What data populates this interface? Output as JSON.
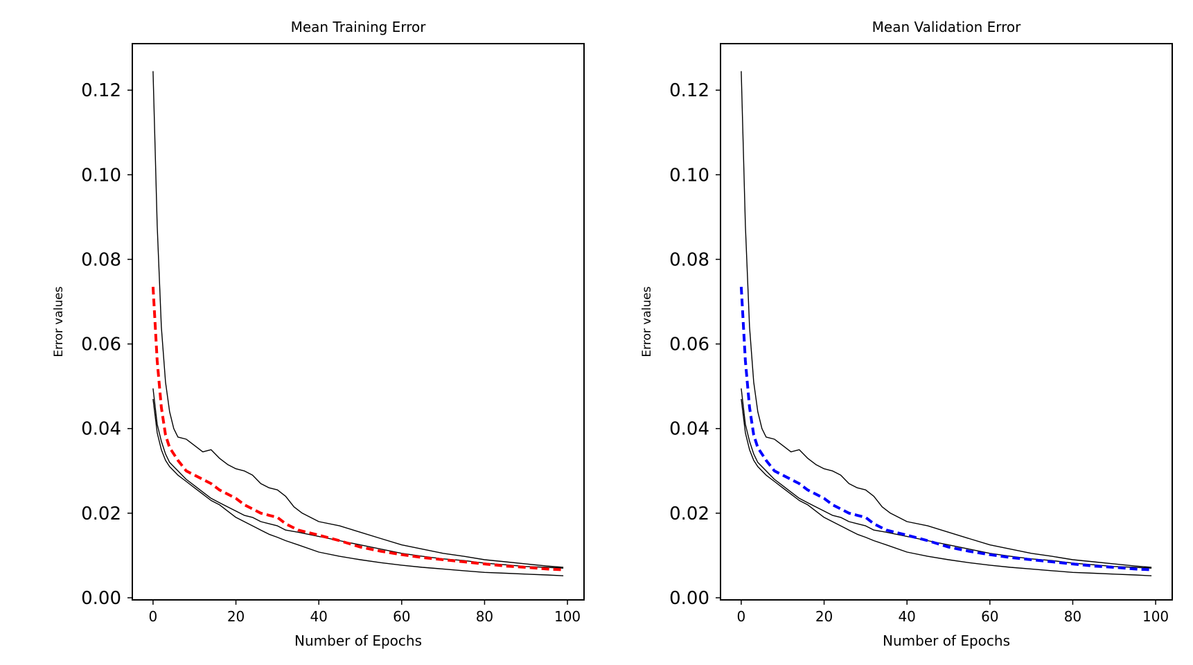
{
  "chart_data": [
    {
      "type": "line",
      "title": "Mean Training Error",
      "xlabel": "Number of Epochs",
      "ylabel": "Error values",
      "xlim": [
        -5,
        104
      ],
      "ylim": [
        -0.0005,
        0.131
      ],
      "xticks": [
        "0",
        "20",
        "40",
        "60",
        "80",
        "100"
      ],
      "yticks": [
        "0.00",
        "0.02",
        "0.04",
        "0.06",
        "0.08",
        "0.10",
        "0.12"
      ],
      "grid": false,
      "series": [
        {
          "style": "thin black line",
          "color": "#000000",
          "x": [
            0,
            1,
            2,
            3,
            4,
            5,
            6,
            8,
            10,
            12,
            14,
            16,
            18,
            20,
            22,
            24,
            26,
            28,
            30,
            32,
            34,
            36,
            38,
            40,
            45,
            50,
            55,
            60,
            65,
            70,
            75,
            80,
            85,
            90,
            95,
            99
          ],
          "y": [
            0.1245,
            0.088,
            0.064,
            0.051,
            0.044,
            0.04,
            0.038,
            0.0375,
            0.036,
            0.0345,
            0.035,
            0.033,
            0.0315,
            0.0305,
            0.03,
            0.029,
            0.027,
            0.026,
            0.0255,
            0.024,
            0.0215,
            0.02,
            0.019,
            0.018,
            0.017,
            0.0155,
            0.014,
            0.0125,
            0.0115,
            0.0105,
            0.0098,
            0.009,
            0.0085,
            0.008,
            0.0075,
            0.0072
          ]
        },
        {
          "style": "thin black line",
          "color": "#000000",
          "x": [
            0,
            1,
            2,
            3,
            4,
            6,
            8,
            10,
            12,
            14,
            16,
            18,
            20,
            22,
            24,
            26,
            28,
            30,
            32,
            35,
            40,
            45,
            50,
            55,
            60,
            65,
            70,
            75,
            80,
            85,
            90,
            95,
            99
          ],
          "y": [
            0.0495,
            0.041,
            0.037,
            0.034,
            0.032,
            0.03,
            0.028,
            0.0265,
            0.025,
            0.0235,
            0.0225,
            0.0215,
            0.0205,
            0.0195,
            0.019,
            0.018,
            0.0175,
            0.017,
            0.016,
            0.0155,
            0.0145,
            0.0135,
            0.0125,
            0.0115,
            0.0105,
            0.0098,
            0.0092,
            0.0088,
            0.0082,
            0.0078,
            0.0074,
            0.0072,
            0.007
          ]
        },
        {
          "style": "thin black line",
          "color": "#000000",
          "x": [
            0,
            1,
            2,
            3,
            4,
            6,
            8,
            10,
            12,
            14,
            16,
            18,
            20,
            22,
            24,
            26,
            28,
            30,
            32,
            35,
            40,
            45,
            50,
            55,
            60,
            65,
            70,
            75,
            80,
            85,
            90,
            95,
            99
          ],
          "y": [
            0.047,
            0.039,
            0.035,
            0.0325,
            0.031,
            0.029,
            0.0275,
            0.026,
            0.0245,
            0.023,
            0.022,
            0.0205,
            0.019,
            0.018,
            0.017,
            0.016,
            0.015,
            0.0143,
            0.0135,
            0.0125,
            0.0108,
            0.0098,
            0.009,
            0.0083,
            0.0077,
            0.0072,
            0.0068,
            0.0064,
            0.006,
            0.0058,
            0.0056,
            0.0054,
            0.0052
          ]
        },
        {
          "style": "dashed mean",
          "color": "#ff0000",
          "x": [
            0,
            1,
            2,
            3,
            4,
            5,
            6,
            8,
            10,
            12,
            14,
            16,
            18,
            20,
            22,
            24,
            26,
            28,
            30,
            32,
            35,
            40,
            45,
            50,
            55,
            60,
            65,
            70,
            75,
            80,
            85,
            90,
            95,
            99
          ],
          "y": [
            0.0735,
            0.056,
            0.045,
            0.0385,
            0.0355,
            0.034,
            0.0325,
            0.03,
            0.029,
            0.028,
            0.027,
            0.0255,
            0.0245,
            0.0235,
            0.022,
            0.021,
            0.02,
            0.0195,
            0.019,
            0.0175,
            0.016,
            0.0148,
            0.0135,
            0.012,
            0.011,
            0.0102,
            0.0095,
            0.009,
            0.0085,
            0.008,
            0.0075,
            0.0072,
            0.0068,
            0.0066
          ]
        }
      ]
    },
    {
      "type": "line",
      "title": "Mean Validation Error",
      "xlabel": "Number of Epochs",
      "ylabel": "Error values",
      "xlim": [
        -5,
        104
      ],
      "ylim": [
        -0.0005,
        0.131
      ],
      "xticks": [
        "0",
        "20",
        "40",
        "60",
        "80",
        "100"
      ],
      "yticks": [
        "0.00",
        "0.02",
        "0.04",
        "0.06",
        "0.08",
        "0.10",
        "0.12"
      ],
      "grid": false,
      "series": [
        {
          "style": "thin black line",
          "color": "#000000",
          "x": [
            0,
            1,
            2,
            3,
            4,
            5,
            6,
            8,
            10,
            12,
            14,
            16,
            18,
            20,
            22,
            24,
            26,
            28,
            30,
            32,
            34,
            36,
            38,
            40,
            45,
            50,
            55,
            60,
            65,
            70,
            75,
            80,
            85,
            90,
            95,
            99
          ],
          "y": [
            0.1245,
            0.088,
            0.064,
            0.051,
            0.044,
            0.04,
            0.038,
            0.0375,
            0.036,
            0.0345,
            0.035,
            0.033,
            0.0315,
            0.0305,
            0.03,
            0.029,
            0.027,
            0.026,
            0.0255,
            0.024,
            0.0215,
            0.02,
            0.019,
            0.018,
            0.017,
            0.0155,
            0.014,
            0.0125,
            0.0115,
            0.0105,
            0.0098,
            0.009,
            0.0085,
            0.008,
            0.0075,
            0.0072
          ]
        },
        {
          "style": "thin black line",
          "color": "#000000",
          "x": [
            0,
            1,
            2,
            3,
            4,
            6,
            8,
            10,
            12,
            14,
            16,
            18,
            20,
            22,
            24,
            26,
            28,
            30,
            32,
            35,
            40,
            45,
            50,
            55,
            60,
            65,
            70,
            75,
            80,
            85,
            90,
            95,
            99
          ],
          "y": [
            0.0495,
            0.041,
            0.037,
            0.034,
            0.032,
            0.03,
            0.028,
            0.0265,
            0.025,
            0.0235,
            0.0225,
            0.0215,
            0.0205,
            0.0195,
            0.019,
            0.018,
            0.0175,
            0.017,
            0.016,
            0.0155,
            0.0145,
            0.0135,
            0.0125,
            0.0115,
            0.0105,
            0.0098,
            0.0092,
            0.0088,
            0.0082,
            0.0078,
            0.0074,
            0.0072,
            0.007
          ]
        },
        {
          "style": "thin black line",
          "color": "#000000",
          "x": [
            0,
            1,
            2,
            3,
            4,
            6,
            8,
            10,
            12,
            14,
            16,
            18,
            20,
            22,
            24,
            26,
            28,
            30,
            32,
            35,
            40,
            45,
            50,
            55,
            60,
            65,
            70,
            75,
            80,
            85,
            90,
            95,
            99
          ],
          "y": [
            0.047,
            0.039,
            0.035,
            0.0325,
            0.031,
            0.029,
            0.0275,
            0.026,
            0.0245,
            0.023,
            0.022,
            0.0205,
            0.019,
            0.018,
            0.017,
            0.016,
            0.015,
            0.0143,
            0.0135,
            0.0125,
            0.0108,
            0.0098,
            0.009,
            0.0083,
            0.0077,
            0.0072,
            0.0068,
            0.0064,
            0.006,
            0.0058,
            0.0056,
            0.0054,
            0.0052
          ]
        },
        {
          "style": "dashed mean",
          "color": "#0000ff",
          "x": [
            0,
            1,
            2,
            3,
            4,
            5,
            6,
            8,
            10,
            12,
            14,
            16,
            18,
            20,
            22,
            24,
            26,
            28,
            30,
            32,
            35,
            40,
            45,
            50,
            55,
            60,
            65,
            70,
            75,
            80,
            85,
            90,
            95,
            99
          ],
          "y": [
            0.0735,
            0.056,
            0.045,
            0.0385,
            0.0355,
            0.034,
            0.0325,
            0.03,
            0.029,
            0.028,
            0.027,
            0.0255,
            0.0245,
            0.0235,
            0.022,
            0.021,
            0.02,
            0.0195,
            0.019,
            0.0175,
            0.016,
            0.0148,
            0.0135,
            0.012,
            0.011,
            0.0102,
            0.0095,
            0.009,
            0.0085,
            0.008,
            0.0075,
            0.0072,
            0.0068,
            0.0066
          ]
        }
      ]
    }
  ]
}
